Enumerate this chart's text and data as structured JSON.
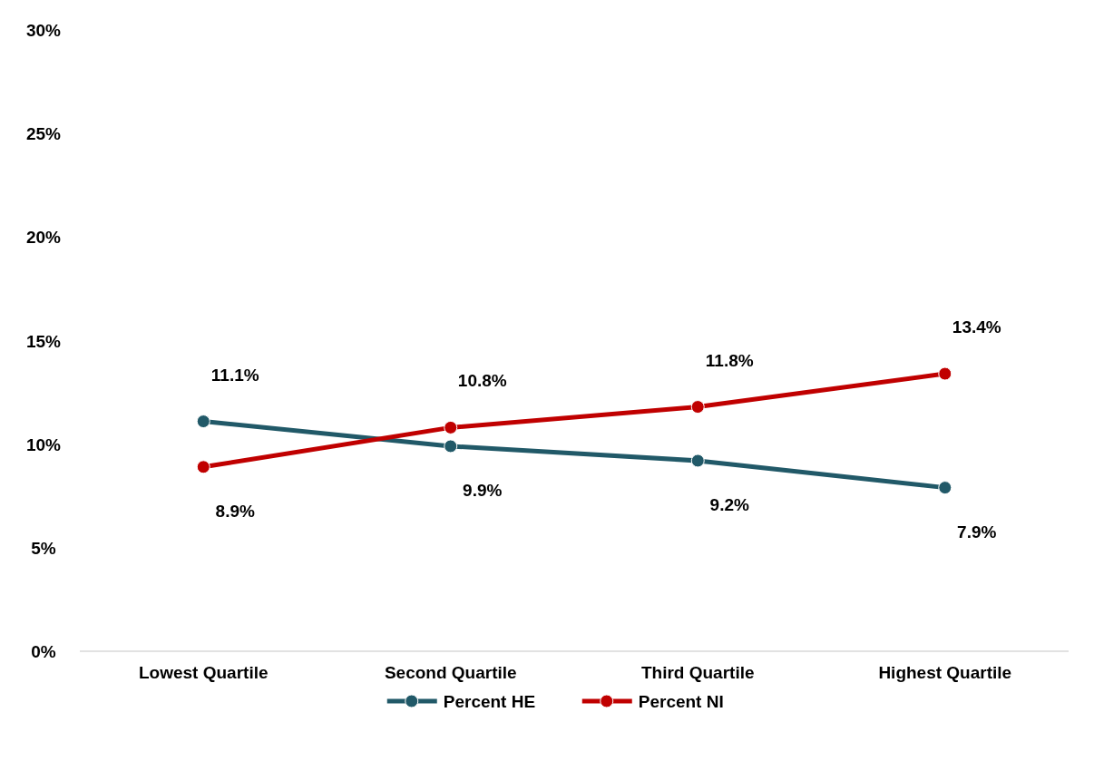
{
  "chart_data": {
    "type": "line",
    "categories": [
      "Lowest Quartile",
      "Second Quartile",
      "Third Quartile",
      "Highest Quartile"
    ],
    "series": [
      {
        "name": "Percent HE",
        "color": "#215968",
        "values": [
          11.1,
          9.9,
          9.2,
          7.9
        ],
        "value_labels": [
          "11.1%",
          "9.9%",
          "9.2%",
          "7.9%"
        ]
      },
      {
        "name": "Percent NI",
        "color": "#c00000",
        "values": [
          8.9,
          10.8,
          11.8,
          13.4
        ],
        "value_labels": [
          "8.9%",
          "10.8%",
          "11.8%",
          "13.4%"
        ]
      }
    ],
    "ylim": [
      0,
      30
    ],
    "yticks": [
      {
        "value": 0,
        "label": "0%"
      },
      {
        "value": 5,
        "label": "5%"
      },
      {
        "value": 10,
        "label": "10%"
      },
      {
        "value": 15,
        "label": "15%"
      },
      {
        "value": 20,
        "label": "20%"
      },
      {
        "value": 25,
        "label": "25%"
      },
      {
        "value": 30,
        "label": "30%"
      }
    ],
    "legend": "bottom",
    "marker": "circle",
    "line_style": "solid"
  }
}
